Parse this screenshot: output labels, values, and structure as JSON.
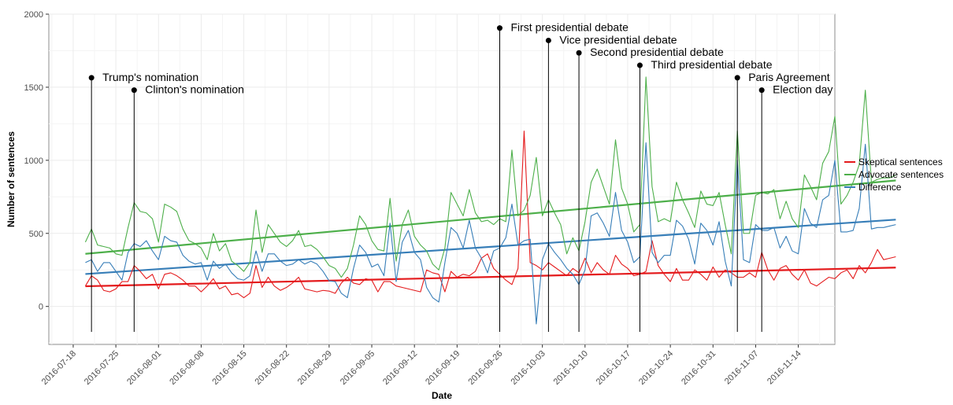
{
  "chart_data": {
    "type": "line",
    "title": "",
    "xlabel": "Date",
    "ylabel": "Number of sentences",
    "x_start": "2016-07-20",
    "xlim": [
      "2016-07-14",
      "2016-11-20"
    ],
    "ylim": [
      -260,
      2000
    ],
    "y_ticks": [
      0,
      500,
      1000,
      1500,
      2000
    ],
    "x_ticks": [
      "2016-07-18",
      "2016-07-25",
      "2016-08-01",
      "2016-08-08",
      "2016-08-15",
      "2016-08-22",
      "2016-08-29",
      "2016-09-05",
      "2016-09-12",
      "2016-09-19",
      "2016-09-26",
      "2016-10-03",
      "2016-10-10",
      "2016-10-17",
      "2016-10-24",
      "2016-10-31",
      "2016-11-07",
      "2016-11-14"
    ],
    "grid": true,
    "legend_position": "right",
    "series": [
      {
        "name": "Skeptical sentences",
        "color": "#e41a1c",
        "values": [
          140,
          210,
          180,
          110,
          100,
          120,
          170,
          170,
          280,
          240,
          190,
          220,
          120,
          220,
          230,
          210,
          180,
          140,
          140,
          100,
          140,
          190,
          120,
          140,
          80,
          90,
          60,
          90,
          280,
          130,
          200,
          140,
          110,
          130,
          160,
          200,
          120,
          110,
          100,
          110,
          105,
          90,
          160,
          200,
          160,
          150,
          190,
          180,
          100,
          170,
          170,
          140,
          130,
          120,
          110,
          100,
          250,
          230,
          220,
          100,
          240,
          200,
          220,
          210,
          240,
          330,
          360,
          260,
          220,
          180,
          150,
          260,
          1200,
          300,
          280,
          250,
          300,
          270,
          240,
          210,
          260,
          230,
          330,
          230,
          300,
          250,
          220,
          350,
          290,
          260,
          210,
          220,
          240,
          450,
          280,
          220,
          170,
          260,
          180,
          180,
          250,
          220,
          180,
          270,
          200,
          250,
          230,
          200,
          200,
          230,
          200,
          370,
          250,
          180,
          260,
          280,
          220,
          180,
          250,
          160,
          140,
          170,
          200,
          190,
          230,
          250,
          190,
          280,
          230,
          300,
          390,
          320,
          330,
          340
        ]
      },
      {
        "name": "Advocate sentences",
        "color": "#4daf4a",
        "values": [
          440,
          530,
          420,
          410,
          400,
          360,
          350,
          540,
          710,
          650,
          640,
          600,
          440,
          700,
          680,
          650,
          530,
          450,
          430,
          400,
          320,
          500,
          380,
          430,
          310,
          280,
          240,
          300,
          660,
          370,
          560,
          500,
          440,
          410,
          450,
          520,
          410,
          420,
          390,
          340,
          280,
          260,
          200,
          260,
          420,
          620,
          560,
          450,
          390,
          380,
          740,
          310,
          560,
          660,
          480,
          420,
          380,
          290,
          250,
          400,
          780,
          700,
          620,
          800,
          640,
          580,
          590,
          560,
          600,
          580,
          1070,
          620,
          660,
          760,
          1020,
          620,
          730,
          640,
          560,
          360,
          470,
          380,
          580,
          850,
          940,
          820,
          700,
          1140,
          810,
          700,
          510,
          560,
          1570,
          820,
          580,
          600,
          580,
          850,
          730,
          640,
          540,
          790,
          700,
          690,
          780,
          560,
          360,
          1200,
          500,
          500,
          760,
          780,
          770,
          800,
          600,
          720,
          600,
          540,
          900,
          820,
          730,
          980,
          1060,
          1300,
          700,
          760,
          850,
          970,
          1480,
          850,
          870,
          880,
          880,
          900
        ]
      },
      {
        "name": "Difference",
        "color": "#377eb8",
        "values": [
          300,
          320,
          240,
          300,
          300,
          240,
          180,
          370,
          430,
          410,
          450,
          380,
          320,
          480,
          450,
          440,
          350,
          310,
          290,
          300,
          180,
          310,
          260,
          290,
          230,
          190,
          180,
          210,
          380,
          240,
          360,
          360,
          310,
          280,
          290,
          320,
          290,
          310,
          290,
          240,
          175,
          170,
          90,
          60,
          260,
          420,
          370,
          270,
          290,
          210,
          570,
          170,
          440,
          520,
          370,
          320,
          130,
          60,
          30,
          300,
          540,
          500,
          400,
          590,
          400,
          330,
          230,
          380,
          400,
          470,
          700,
          420,
          450,
          460,
          -120,
          320,
          430,
          370,
          320,
          260,
          220,
          150,
          250,
          620,
          640,
          570,
          480,
          780,
          520,
          440,
          300,
          340,
          1120,
          370,
          300,
          350,
          350,
          590,
          550,
          460,
          290,
          570,
          520,
          420,
          580,
          310,
          140,
          1000,
          320,
          300,
          560,
          520,
          520,
          540,
          400,
          480,
          380,
          360,
          670,
          570,
          540,
          730,
          760,
          1000,
          510,
          510,
          520,
          670,
          1110,
          530,
          540,
          540,
          550,
          560
        ]
      }
    ],
    "trend_lines": [
      {
        "series": "Skeptical sentences",
        "start": 138,
        "end": 266
      },
      {
        "series": "Advocate sentences",
        "start": 360,
        "end": 862
      },
      {
        "series": "Difference",
        "start": 222,
        "end": 594
      }
    ],
    "events": [
      {
        "label": "Trump's nomination",
        "date": "2016-07-21",
        "y": 1565
      },
      {
        "label": "Clinton's nomination",
        "date": "2016-07-28",
        "y": 1480
      },
      {
        "label": "First presidential debate",
        "date": "2016-09-26",
        "y": 1905
      },
      {
        "label": "Vice presidential debate",
        "date": "2016-10-04",
        "y": 1820
      },
      {
        "label": "Second presidential debate",
        "date": "2016-10-09",
        "y": 1735
      },
      {
        "label": "Third presidential debate",
        "date": "2016-10-19",
        "y": 1650
      },
      {
        "label": "Paris Agreement",
        "date": "2016-11-04",
        "y": 1565
      },
      {
        "label": "Election day",
        "date": "2016-11-08",
        "y": 1480
      }
    ]
  }
}
